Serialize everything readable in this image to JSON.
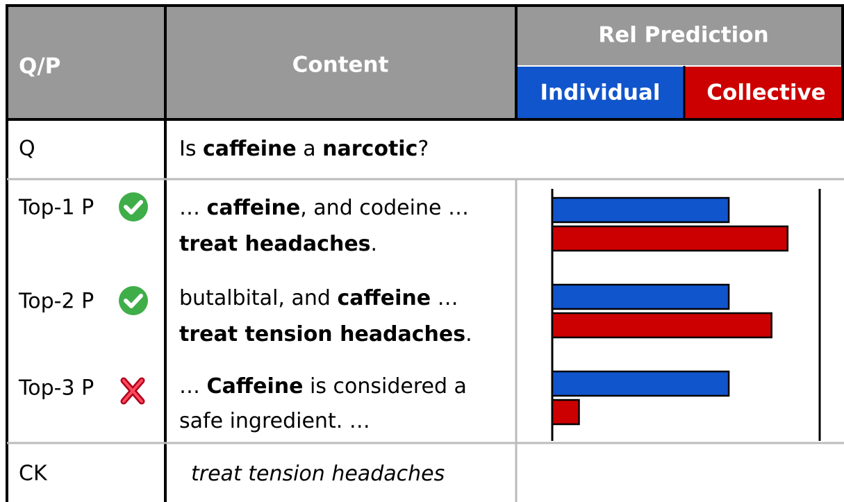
{
  "header": {
    "qp": "Q/P",
    "content": "Content"
  },
  "rows": [
    {
      "label": "Q",
      "content": [
        [
          {
            "text": "Is ",
            "style": "normal"
          },
          {
            "text": "caffeine",
            "style": "bold"
          },
          {
            "text": " a ",
            "style": "normal"
          },
          {
            "text": "narcotic",
            "style": "bold"
          },
          {
            "text": "?",
            "style": "normal"
          }
        ]
      ]
    },
    {
      "label": "Top-1 P",
      "content": [
        [
          {
            "text": "… ",
            "style": "normal"
          },
          {
            "text": "caffeine",
            "style": "bold"
          },
          {
            "text": ", and codeine …",
            "style": "normal"
          }
        ],
        [
          {
            "text": "treat headaches",
            "style": "bold"
          },
          {
            "text": ".",
            "style": "normal"
          }
        ]
      ]
    },
    {
      "label": "Top-2 P",
      "content": [
        [
          {
            "text": "butalbital, and ",
            "style": "normal"
          },
          {
            "text": "caffeine",
            "style": "bold"
          },
          {
            "text": " …",
            "style": "normal"
          }
        ],
        [
          {
            "text": "treat tension headaches",
            "style": "bold"
          },
          {
            "text": ".",
            "style": "normal"
          }
        ]
      ]
    },
    {
      "label": "Top-3 P",
      "content": [
        [
          {
            "text": "… ",
            "style": "normal"
          },
          {
            "text": "Caffeine",
            "style": "bold"
          },
          {
            "text": " is considered a",
            "style": "normal"
          }
        ],
        [
          {
            "text": "safe ingredient. …",
            "style": "normal"
          }
        ]
      ]
    },
    {
      "label": "CK",
      "content": [
        [
          {
            "text": "treat tension headaches",
            "style": "italic"
          }
        ]
      ]
    }
  ],
  "chart_data": {
    "type": "bar",
    "title": "Rel Prediction",
    "orientation": "horizontal",
    "xlim": [
      0,
      1
    ],
    "series": [
      {
        "name": "Individual",
        "color": "#1155cc",
        "values": [
          0.66,
          0.66,
          0.66
        ]
      },
      {
        "name": "Collective",
        "color": "#cc0000",
        "values": [
          0.88,
          0.82,
          0.1
        ]
      }
    ]
  }
}
